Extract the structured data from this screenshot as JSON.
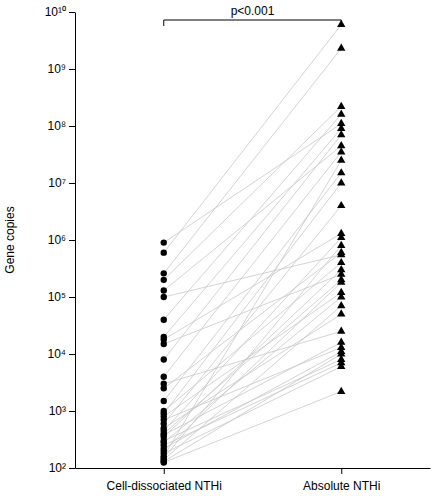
{
  "chart_data": {
    "type": "scatter",
    "y_label": "Gene copies",
    "annotation": "p<0.001",
    "categories": [
      "Cell-dissociated NTHi",
      "Absolute NTHi"
    ],
    "log": "y",
    "color": "#000000",
    "ylim": [
      100,
      10000000000
    ],
    "yticks": [
      {
        "value": 100,
        "label": "10²"
      },
      {
        "value": 1000,
        "label": "10³"
      },
      {
        "value": 10000,
        "label": "10⁴"
      },
      {
        "value": 100000,
        "label": "10⁵"
      },
      {
        "value": 1000000,
        "label": "10⁶"
      },
      {
        "value": 10000000,
        "label": "10⁷"
      },
      {
        "value": 100000000,
        "label": "10⁸"
      },
      {
        "value": 1000000000,
        "label": "10⁹"
      },
      {
        "value": 10000000000,
        "label": "10¹⁰"
      }
    ],
    "series": [
      {
        "values": [
          900000,
          110000000
        ]
      },
      {
        "values": [
          600000,
          6000000000
        ]
      },
      {
        "values": [
          260000,
          2300000000
        ]
      },
      {
        "values": [
          200000,
          220000000
        ]
      },
      {
        "values": [
          130000,
          45000000
        ]
      },
      {
        "values": [
          100000,
          550000
        ]
      },
      {
        "values": [
          40000,
          160000000
        ]
      },
      {
        "values": [
          20000,
          90000000
        ]
      },
      {
        "values": [
          18000,
          1300000
        ]
      },
      {
        "values": [
          15000,
          250000
        ]
      },
      {
        "values": [
          8000,
          70000000
        ]
      },
      {
        "values": [
          4000,
          35000000
        ]
      },
      {
        "values": [
          3000,
          25000
        ]
      },
      {
        "values": [
          2500,
          600000
        ]
      },
      {
        "values": [
          1500,
          15000000
        ]
      },
      {
        "values": [
          1000,
          400000
        ]
      },
      {
        "values": [
          900,
          10000000
        ]
      },
      {
        "values": [
          800,
          120000
        ]
      },
      {
        "values": [
          700,
          13000
        ]
      },
      {
        "values": [
          600,
          4000000
        ]
      },
      {
        "values": [
          500,
          50000
        ]
      },
      {
        "values": [
          450,
          1100000
        ]
      },
      {
        "values": [
          400,
          200000
        ]
      },
      {
        "values": [
          380,
          16000
        ]
      },
      {
        "values": [
          350,
          300000
        ]
      },
      {
        "values": [
          300,
          8000
        ]
      },
      {
        "values": [
          280,
          100000
        ]
      },
      {
        "values": [
          250,
          7000
        ]
      },
      {
        "values": [
          220,
          11000
        ]
      },
      {
        "values": [
          200,
          180000
        ]
      },
      {
        "values": [
          180,
          6000
        ]
      },
      {
        "values": [
          150,
          800000
        ]
      },
      {
        "values": [
          130,
          10000
        ]
      },
      {
        "values": [
          125,
          2200
        ]
      },
      {
        "values": [
          160,
          25000000
        ]
      },
      {
        "values": [
          140,
          70000
        ]
      }
    ]
  }
}
